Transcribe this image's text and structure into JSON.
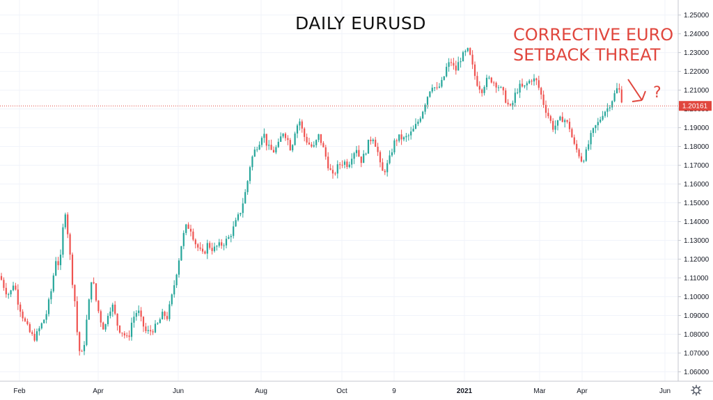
{
  "chart_data": {
    "type": "candlestick",
    "title": "DAILY EURUSD",
    "annotation": {
      "lines": [
        "CORRECTIVE EURO",
        "SETBACK THREAT"
      ],
      "mark": "?",
      "arrow_icon": "down-right-arrow-icon"
    },
    "ylim": [
      1.055,
      1.258
    ],
    "yticks": [
      "1.25000",
      "1.24000",
      "1.23000",
      "1.22000",
      "1.21000",
      "1.20000",
      "1.19000",
      "1.18000",
      "1.17000",
      "1.16000",
      "1.15000",
      "1.14000",
      "1.13000",
      "1.12000",
      "1.11000",
      "1.10000",
      "1.09000",
      "1.08000",
      "1.07000",
      "1.06000"
    ],
    "xticks": [
      "Feb",
      "Apr",
      "Jun",
      "Aug",
      "Oct",
      "9",
      "2021",
      "Mar",
      "Apr",
      "Jun"
    ],
    "current_price": "1.20161",
    "path_points": [
      [
        0,
        1.111
      ],
      [
        8,
        1.103
      ],
      [
        14,
        1.101
      ],
      [
        20,
        1.108
      ],
      [
        26,
        1.097
      ],
      [
        34,
        1.088
      ],
      [
        44,
        1.08
      ],
      [
        50,
        1.078
      ],
      [
        58,
        1.084
      ],
      [
        66,
        1.09
      ],
      [
        74,
        1.104
      ],
      [
        80,
        1.12
      ],
      [
        86,
        1.116
      ],
      [
        90,
        1.135
      ],
      [
        94,
        1.146
      ],
      [
        100,
        1.124
      ],
      [
        104,
        1.108
      ],
      [
        108,
        1.096
      ],
      [
        112,
        1.075
      ],
      [
        116,
        1.068
      ],
      [
        120,
        1.072
      ],
      [
        124,
        1.086
      ],
      [
        128,
        1.098
      ],
      [
        132,
        1.112
      ],
      [
        138,
        1.098
      ],
      [
        144,
        1.088
      ],
      [
        150,
        1.082
      ],
      [
        156,
        1.093
      ],
      [
        162,
        1.095
      ],
      [
        170,
        1.083
      ],
      [
        176,
        1.081
      ],
      [
        184,
        1.077
      ],
      [
        190,
        1.088
      ],
      [
        198,
        1.093
      ],
      [
        204,
        1.086
      ],
      [
        210,
        1.081
      ],
      [
        218,
        1.082
      ],
      [
        226,
        1.085
      ],
      [
        234,
        1.091
      ],
      [
        240,
        1.089
      ],
      [
        248,
        1.102
      ],
      [
        256,
        1.118
      ],
      [
        262,
        1.131
      ],
      [
        268,
        1.138
      ],
      [
        274,
        1.136
      ],
      [
        280,
        1.129
      ],
      [
        286,
        1.125
      ],
      [
        292,
        1.122
      ],
      [
        298,
        1.128
      ],
      [
        306,
        1.125
      ],
      [
        312,
        1.127
      ],
      [
        320,
        1.128
      ],
      [
        330,
        1.132
      ],
      [
        338,
        1.139
      ],
      [
        346,
        1.146
      ],
      [
        354,
        1.158
      ],
      [
        360,
        1.172
      ],
      [
        366,
        1.178
      ],
      [
        372,
        1.182
      ],
      [
        378,
        1.188
      ],
      [
        384,
        1.18
      ],
      [
        392,
        1.177
      ],
      [
        400,
        1.181
      ],
      [
        406,
        1.188
      ],
      [
        412,
        1.185
      ],
      [
        418,
        1.178
      ],
      [
        424,
        1.189
      ],
      [
        430,
        1.194
      ],
      [
        436,
        1.186
      ],
      [
        442,
        1.182
      ],
      [
        450,
        1.179
      ],
      [
        458,
        1.186
      ],
      [
        466,
        1.177
      ],
      [
        472,
        1.169
      ],
      [
        478,
        1.164
      ],
      [
        486,
        1.17
      ],
      [
        494,
        1.172
      ],
      [
        500,
        1.17
      ],
      [
        506,
        1.176
      ],
      [
        512,
        1.179
      ],
      [
        518,
        1.172
      ],
      [
        524,
        1.176
      ],
      [
        530,
        1.183
      ],
      [
        536,
        1.185
      ],
      [
        542,
        1.178
      ],
      [
        548,
        1.166
      ],
      [
        554,
        1.168
      ],
      [
        560,
        1.174
      ],
      [
        566,
        1.182
      ],
      [
        572,
        1.185
      ],
      [
        580,
        1.184
      ],
      [
        588,
        1.186
      ],
      [
        594,
        1.189
      ],
      [
        600,
        1.193
      ],
      [
        606,
        1.198
      ],
      [
        612,
        1.205
      ],
      [
        620,
        1.213
      ],
      [
        628,
        1.21
      ],
      [
        636,
        1.215
      ],
      [
        642,
        1.223
      ],
      [
        648,
        1.225
      ],
      [
        654,
        1.22
      ],
      [
        660,
        1.226
      ],
      [
        666,
        1.229
      ],
      [
        672,
        1.231
      ],
      [
        676,
        1.227
      ],
      [
        680,
        1.22
      ],
      [
        686,
        1.213
      ],
      [
        692,
        1.21
      ],
      [
        698,
        1.215
      ],
      [
        704,
        1.216
      ],
      [
        710,
        1.214
      ],
      [
        716,
        1.212
      ],
      [
        722,
        1.209
      ],
      [
        728,
        1.203
      ],
      [
        734,
        1.2
      ],
      [
        740,
        1.208
      ],
      [
        746,
        1.212
      ],
      [
        752,
        1.211
      ],
      [
        758,
        1.214
      ],
      [
        764,
        1.216
      ],
      [
        770,
        1.215
      ],
      [
        776,
        1.209
      ],
      [
        782,
        1.201
      ],
      [
        788,
        1.196
      ],
      [
        794,
        1.19
      ],
      [
        800,
        1.192
      ],
      [
        806,
        1.195
      ],
      [
        812,
        1.194
      ],
      [
        818,
        1.19
      ],
      [
        824,
        1.181
      ],
      [
        830,
        1.177
      ],
      [
        836,
        1.172
      ],
      [
        842,
        1.177
      ],
      [
        848,
        1.185
      ],
      [
        854,
        1.19
      ],
      [
        860,
        1.193
      ],
      [
        866,
        1.198
      ],
      [
        872,
        1.2
      ],
      [
        878,
        1.204
      ],
      [
        884,
        1.209
      ],
      [
        888,
        1.212
      ],
      [
        892,
        1.206
      ],
      [
        896,
        1.2016
      ]
    ]
  }
}
